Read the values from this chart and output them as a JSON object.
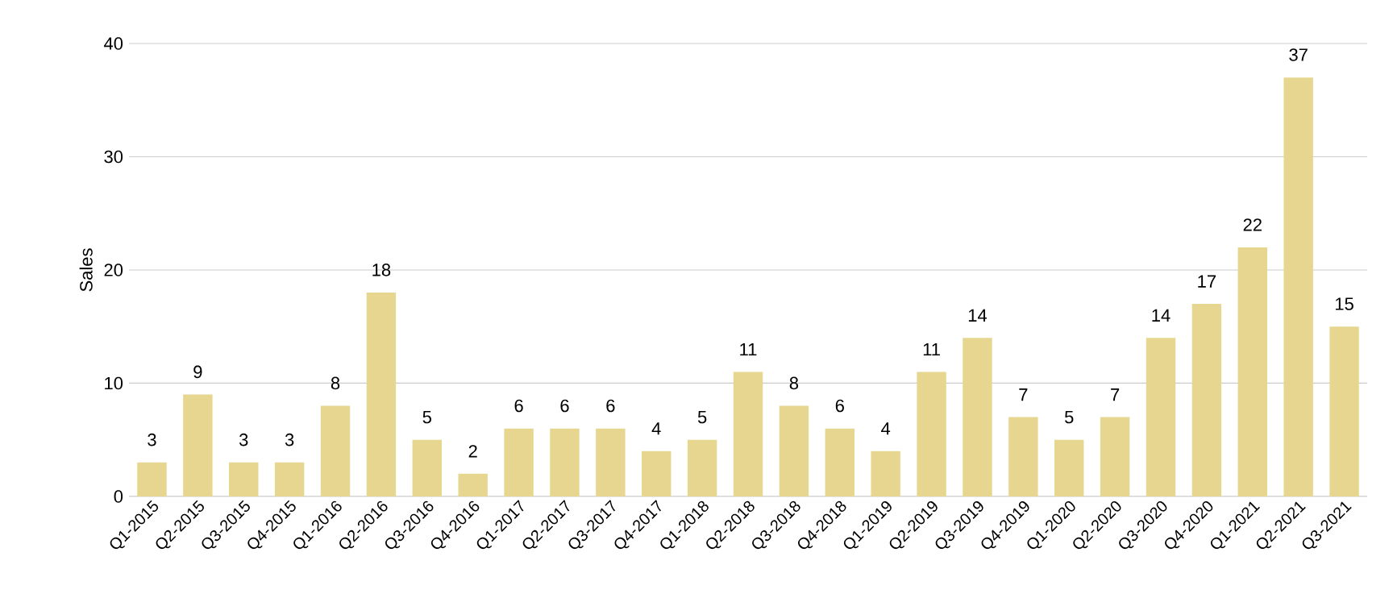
{
  "chart_data": {
    "type": "bar",
    "ylabel": "Sales",
    "categories": [
      "Q1-2015",
      "Q2-2015",
      "Q3-2015",
      "Q4-2015",
      "Q1-2016",
      "Q2-2016",
      "Q3-2016",
      "Q4-2016",
      "Q1-2017",
      "Q2-2017",
      "Q3-2017",
      "Q4-2017",
      "Q1-2018",
      "Q2-2018",
      "Q3-2018",
      "Q4-2018",
      "Q1-2019",
      "Q2-2019",
      "Q3-2019",
      "Q4-2019",
      "Q1-2020",
      "Q2-2020",
      "Q3-2020",
      "Q4-2020",
      "Q1-2021",
      "Q2-2021",
      "Q3-2021"
    ],
    "values": [
      3,
      9,
      3,
      3,
      8,
      18,
      5,
      2,
      6,
      6,
      6,
      4,
      5,
      11,
      8,
      6,
      4,
      11,
      14,
      7,
      5,
      7,
      14,
      17,
      22,
      37,
      15
    ],
    "color": "#e6d68f",
    "ylim": [
      0,
      40
    ],
    "yticks": [
      0,
      10,
      20,
      30,
      40
    ],
    "grid": "y",
    "data_labels": true
  }
}
